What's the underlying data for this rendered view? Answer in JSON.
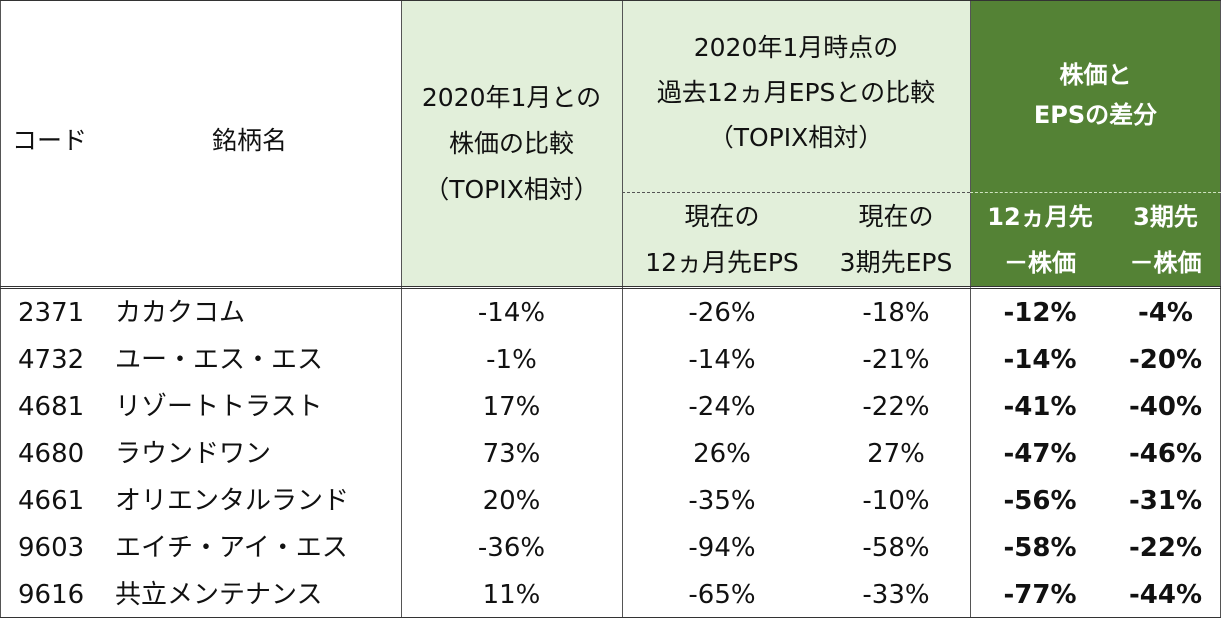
{
  "header": {
    "code": "コード",
    "name": "銘柄名",
    "price_compare": [
      "2020年1月との",
      "株価の比較",
      "（TOPIX相対）"
    ],
    "eps_compare": [
      "2020年1月時点の",
      "過去12ヵ月EPSとの比較",
      "（TOPIX相対）"
    ],
    "eps_12m": [
      "現在の",
      "12ヵ月先EPS"
    ],
    "eps_3y": [
      "現在の",
      "3期先EPS"
    ],
    "diff": [
      "株価と",
      "EPSの差分"
    ],
    "diff_12m": [
      "12ヵ月先",
      "－株価"
    ],
    "diff_3y": [
      "3期先",
      "－株価"
    ]
  },
  "rows": [
    {
      "code": "2371",
      "name": "カカクコム",
      "price": "-14%",
      "eps12": "-26%",
      "eps3": "-18%",
      "d12": "-12%",
      "d3": "-4%"
    },
    {
      "code": "4732",
      "name": "ユー・エス・エス",
      "price": "-1%",
      "eps12": "-14%",
      "eps3": "-21%",
      "d12": "-14%",
      "d3": "-20%"
    },
    {
      "code": "4681",
      "name": "リゾートトラスト",
      "price": "17%",
      "eps12": "-24%",
      "eps3": "-22%",
      "d12": "-41%",
      "d3": "-40%"
    },
    {
      "code": "4680",
      "name": "ラウンドワン",
      "price": "73%",
      "eps12": "26%",
      "eps3": "27%",
      "d12": "-47%",
      "d3": "-46%"
    },
    {
      "code": "4661",
      "name": "オリエンタルランド",
      "price": "20%",
      "eps12": "-35%",
      "eps3": "-10%",
      "d12": "-56%",
      "d3": "-31%"
    },
    {
      "code": "9603",
      "name": "エイチ・アイ・エス",
      "price": "-36%",
      "eps12": "-94%",
      "eps3": "-58%",
      "d12": "-58%",
      "d3": "-22%"
    },
    {
      "code": "9616",
      "name": "共立メンテナンス",
      "price": "11%",
      "eps12": "-65%",
      "eps3": "-33%",
      "d12": "-77%",
      "d3": "-44%"
    }
  ],
  "colors": {
    "header_light": "#e2efda",
    "header_dark": "#548235"
  }
}
